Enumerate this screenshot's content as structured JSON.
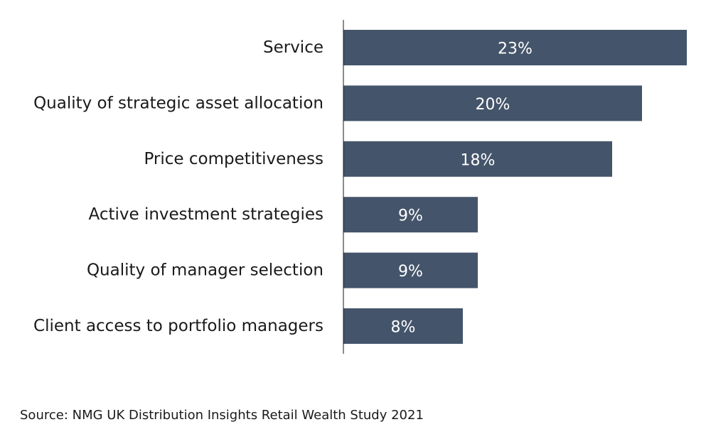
{
  "chart_data": {
    "type": "bar",
    "orientation": "horizontal",
    "categories": [
      "Service",
      "Quality of strategic asset allocation",
      "Price competitiveness",
      "Active investment strategies",
      "Quality of manager selection",
      "Client access to portfolio managers"
    ],
    "values": [
      23,
      20,
      18,
      9,
      9,
      8
    ],
    "data_labels": [
      "23%",
      "20%",
      "18%",
      "9%",
      "9%",
      "8%"
    ],
    "unit": "%",
    "xlim": [
      0,
      23
    ],
    "grid": false,
    "legend": "none",
    "bar_color": "#44546a"
  },
  "source": "Source: NMG UK Distribution Insights Retail Wealth Study 2021"
}
